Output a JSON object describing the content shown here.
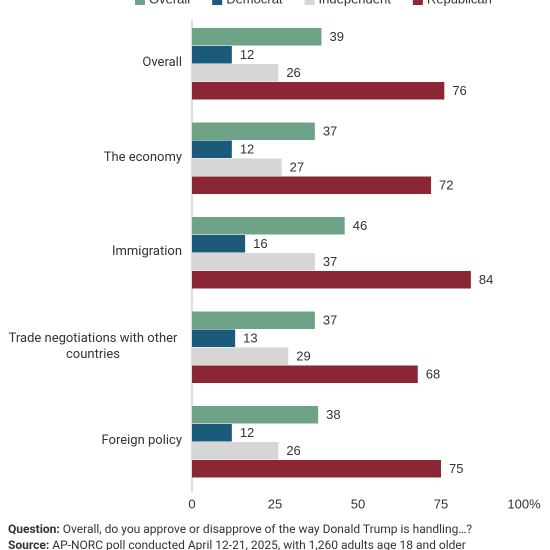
{
  "chart_data": {
    "type": "bar",
    "orientation": "horizontal",
    "categories": [
      "Overall",
      "The economy",
      "Immigration",
      "Trade negotiations with other countries",
      "Foreign policy"
    ],
    "series": [
      {
        "name": "Overall",
        "color": "#6fa388",
        "values": [
          39,
          37,
          46,
          37,
          38
        ]
      },
      {
        "name": "Democrat",
        "color": "#1b5a7a",
        "values": [
          12,
          12,
          16,
          13,
          12
        ]
      },
      {
        "name": "Independent",
        "color": "#d6d6d6",
        "values": [
          26,
          27,
          37,
          29,
          26
        ]
      },
      {
        "name": "Republican",
        "color": "#8b2635",
        "values": [
          76,
          72,
          84,
          68,
          75
        ]
      }
    ],
    "xlim": [
      0,
      100
    ],
    "xticks": [
      0,
      25,
      50,
      75,
      {
        "value": 100,
        "label": "100%"
      }
    ]
  },
  "footer": {
    "question_label": "Question:",
    "question": "Overall, do you approve or disapprove of the way Donald Trump is handling…?",
    "source_label": "Source:",
    "source": "AP-NORC poll conducted April 12-21, 2025, with 1,260 adults age 18 and older"
  }
}
